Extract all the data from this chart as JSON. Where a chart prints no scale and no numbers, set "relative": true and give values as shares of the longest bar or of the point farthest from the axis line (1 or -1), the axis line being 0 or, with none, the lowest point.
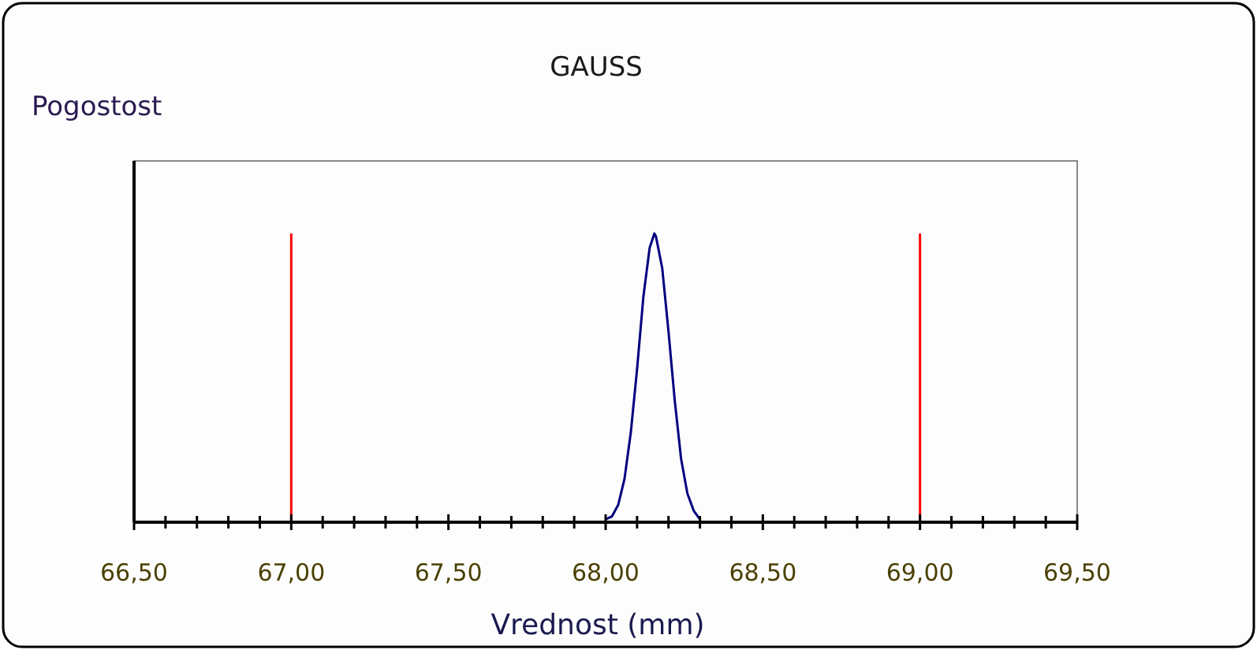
{
  "chart_data": {
    "type": "line",
    "title": "GAUSS",
    "ylabel": "Pogostost",
    "xlabel": "Vrednost (mm)",
    "relative": true,
    "series": [
      {
        "color": "#000080",
        "x": [
          68.0,
          68.02,
          68.04,
          68.06,
          68.08,
          68.1,
          68.12,
          68.14,
          68.155,
          68.16,
          68.18,
          68.2,
          68.22,
          68.24,
          68.26,
          68.28,
          68.3
        ],
        "values": [
          0.01,
          0.02,
          0.06,
          0.15,
          0.31,
          0.53,
          0.78,
          0.95,
          1,
          0.99,
          0.88,
          0.66,
          0.42,
          0.22,
          0.1,
          0.04,
          0.01
        ]
      }
    ],
    "xlim": [
      66.5,
      69.5
    ],
    "xticks": [
      {
        "value": 66.5,
        "label": "66,50"
      },
      {
        "value": 66.6,
        "label": null
      },
      {
        "value": 66.7,
        "label": null
      },
      {
        "value": 66.8,
        "label": null
      },
      {
        "value": 66.9,
        "label": null
      },
      {
        "value": 67,
        "label": "67,00"
      },
      {
        "value": 67.1,
        "label": null
      },
      {
        "value": 67.2,
        "label": null
      },
      {
        "value": 67.3,
        "label": null
      },
      {
        "value": 67.4,
        "label": null
      },
      {
        "value": 67.5,
        "label": "67,50"
      },
      {
        "value": 67.6,
        "label": null
      },
      {
        "value": 67.7,
        "label": null
      },
      {
        "value": 67.8,
        "label": null
      },
      {
        "value": 67.9,
        "label": null
      },
      {
        "value": 68,
        "label": "68,00"
      },
      {
        "value": 68.1,
        "label": null
      },
      {
        "value": 68.2,
        "label": null
      },
      {
        "value": 68.3,
        "label": null
      },
      {
        "value": 68.4,
        "label": null
      },
      {
        "value": 68.5,
        "label": "68,50"
      },
      {
        "value": 68.6,
        "label": null
      },
      {
        "value": 68.7,
        "label": null
      },
      {
        "value": 68.8,
        "label": null
      },
      {
        "value": 68.9,
        "label": null
      },
      {
        "value": 69,
        "label": "69,00"
      },
      {
        "value": 69.1,
        "label": null
      },
      {
        "value": 69.2,
        "label": null
      },
      {
        "value": 69.3,
        "label": null
      },
      {
        "value": 69.4,
        "label": null
      },
      {
        "value": 69.5,
        "label": "69,50"
      }
    ],
    "ref_lines": [
      {
        "axis": "x",
        "value": 67,
        "color": "#ff0000"
      },
      {
        "axis": "x",
        "value": 69,
        "color": "#ff0000"
      }
    ],
    "grid": false,
    "line_style": "solid"
  }
}
